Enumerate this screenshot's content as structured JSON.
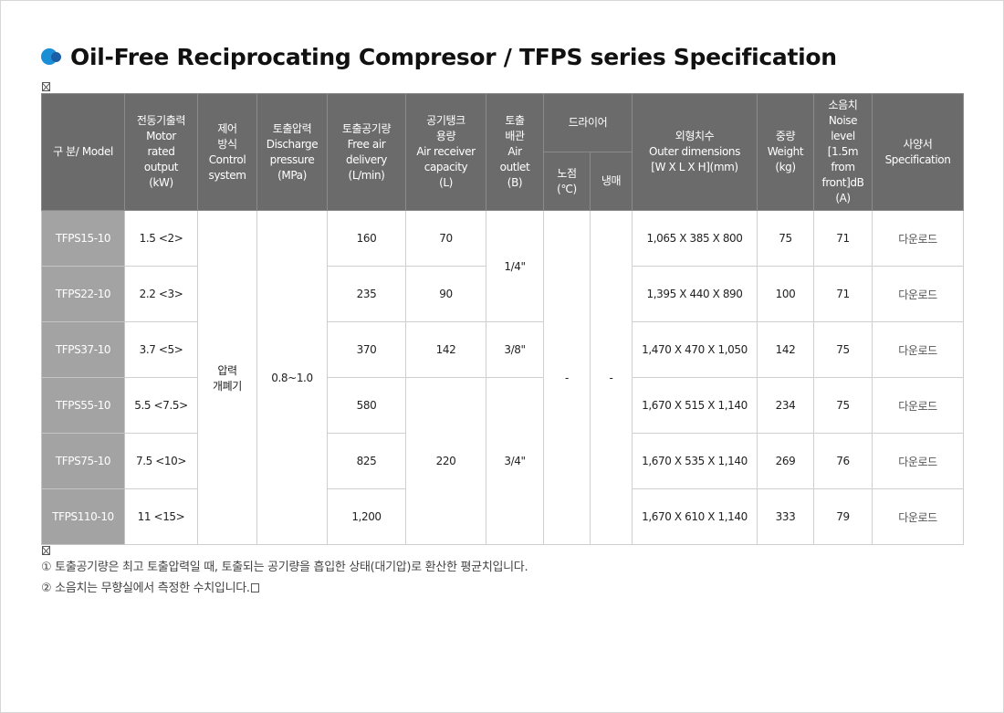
{
  "page": {
    "title": "Oil-Free Reciprocating Compresor / TFPS series Specification"
  },
  "table": {
    "headers": {
      "model": "구 분/ Model",
      "motor": "전동기출력\nMotor\nrated\noutput\n(kW)",
      "control": "제어\n방식\nControl\nsystem",
      "pressure": "토출압력\nDischarge\npressure\n(MPa)",
      "free_air": "토출공기량\nFree air\ndelivery\n(L/min)",
      "receiver": "공기탱크\n용량\nAir receiver\ncapacity\n(L)",
      "outlet": "토출\n배관\nAir\noutlet\n(B)",
      "dryer": "드라이어",
      "dew_point": "노점\n(℃)",
      "refrigerant": "냉매",
      "dimensions": "외형치수\nOuter dimensions\n[W X L X H](mm)",
      "weight": "중량\nWeight\n(kg)",
      "noise": "소음치\nNoise\nlevel\n[1.5m\nfrom\nfront]dB\n(A)",
      "spec": "사양서\nSpecification"
    },
    "control_value": "압력\n개폐기",
    "pressure_value": "0.8~1.0",
    "dew_point_value": "-",
    "refrigerant_value": "-",
    "outlet_groups": [
      "1/4\"",
      "3/8\"",
      "3/4\""
    ],
    "receiver_groups": [
      "70",
      "90",
      "142",
      "220"
    ],
    "rows": [
      {
        "model": "TFPS15-10",
        "motor": "1.5 <2>",
        "free_air": "160",
        "dimensions": "1,065 X 385 X 800",
        "weight": "75",
        "noise": "71",
        "spec": "다운로드"
      },
      {
        "model": "TFPS22-10",
        "motor": "2.2 <3>",
        "free_air": "235",
        "dimensions": "1,395 X 440 X 890",
        "weight": "100",
        "noise": "71",
        "spec": "다운로드"
      },
      {
        "model": "TFPS37-10",
        "motor": "3.7 <5>",
        "free_air": "370",
        "dimensions": "1,470 X 470 X 1,050",
        "weight": "142",
        "noise": "75",
        "spec": "다운로드"
      },
      {
        "model": "TFPS55-10",
        "motor": "5.5 <7.5>",
        "free_air": "580",
        "dimensions": "1,670 X 515 X 1,140",
        "weight": "234",
        "noise": "75",
        "spec": "다운로드"
      },
      {
        "model": "TFPS75-10",
        "motor": "7.5 <10>",
        "free_air": "825",
        "dimensions": "1,670 X 535 X 1,140",
        "weight": "269",
        "noise": "76",
        "spec": "다운로드"
      },
      {
        "model": "TFPS110-10",
        "motor": "11 <15>",
        "free_air": "1,200",
        "dimensions": "1,670 X 610 X 1,140",
        "weight": "333",
        "noise": "79",
        "spec": "다운로드"
      }
    ]
  },
  "notes": [
    "① 토출공기량은 최고 토출압력일 때, 토출되는 공기량을 흡입한 상태(대기압)로 환산한 평균치입니다.",
    "② 소음치는 무향실에서 측정한 수치입니다."
  ]
}
